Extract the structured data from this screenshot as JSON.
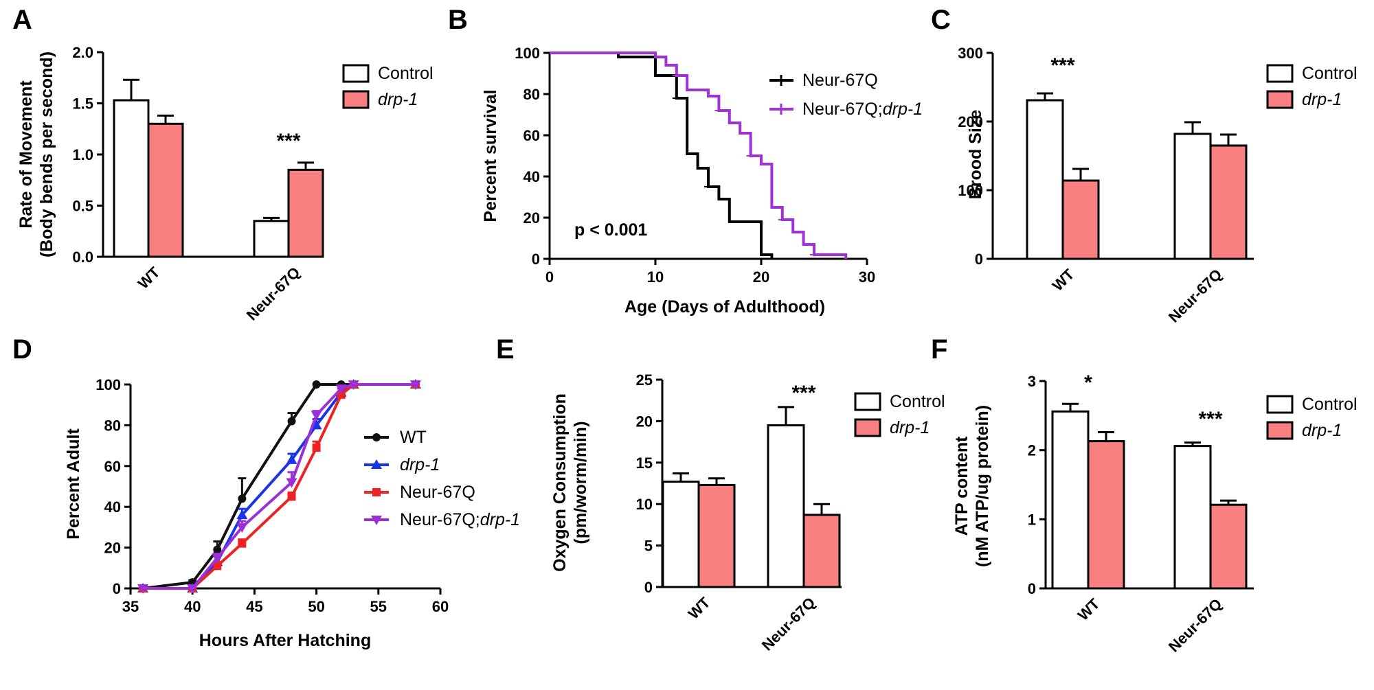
{
  "colors": {
    "control": "#ffffff",
    "drp1": "#f98080",
    "axis": "#000000",
    "wt": "#111111",
    "drp1_line": "#1a35e8",
    "neur": "#ee2222",
    "neurdrp": "#9b30d9",
    "surv_neur": "#000000",
    "surv_neurdrp": "#a030d8"
  },
  "chart_data": [
    {
      "panel": "A",
      "type": "bar",
      "categories": [
        "WT",
        "Neur-67Q"
      ],
      "series": [
        {
          "name": "Control",
          "values": [
            1.53,
            0.35
          ],
          "errors": [
            0.2,
            0.03
          ]
        },
        {
          "name": "drp-1",
          "values": [
            1.3,
            0.85
          ],
          "errors": [
            0.08,
            0.07
          ]
        }
      ],
      "ylabel": [
        "Rate of Movement",
        "(Body bends per second)"
      ],
      "ylim": [
        0,
        2.0
      ],
      "yticks": [
        "0.0",
        "0.5",
        "1.0",
        "1.5",
        "2.0"
      ],
      "significance": [
        {
          "label": "***",
          "category": 1
        }
      ],
      "legend": [
        "Control",
        "drp-1"
      ]
    },
    {
      "panel": "B",
      "type": "line",
      "xlabel": "Age (Days of Adulthood)",
      "ylabel": "Percent survival",
      "xlim": [
        0,
        30
      ],
      "ylim": [
        0,
        100
      ],
      "xticks": [
        "0",
        "10",
        "20",
        "30"
      ],
      "yticks": [
        "0",
        "20",
        "40",
        "60",
        "80",
        "100"
      ],
      "series": [
        {
          "name": "Neur-67Q",
          "x": [
            0,
            6.5,
            10,
            12,
            13,
            14,
            15,
            16,
            17,
            18,
            20,
            21
          ],
          "y": [
            100,
            98,
            89,
            78,
            51,
            44,
            35,
            29,
            18,
            18,
            2,
            0
          ]
        },
        {
          "name": "Neur-67Q;drp-1",
          "x": [
            0,
            10,
            11,
            12,
            13,
            15,
            16,
            17,
            18,
            19,
            20,
            21,
            22,
            23,
            24,
            25,
            28
          ],
          "y": [
            100,
            98,
            94,
            89,
            82,
            79,
            72,
            66,
            61,
            50,
            46,
            25,
            19,
            13,
            7,
            2,
            0
          ]
        }
      ],
      "annotation": "p < 0.001",
      "legend": [
        "Neur-67Q",
        "Neur-67Q;drp-1"
      ]
    },
    {
      "panel": "C",
      "type": "bar",
      "categories": [
        "WT",
        "Neur-67Q"
      ],
      "series": [
        {
          "name": "Control",
          "values": [
            231,
            182
          ],
          "errors": [
            10,
            17
          ]
        },
        {
          "name": "drp-1",
          "values": [
            114,
            165
          ],
          "errors": [
            17,
            16
          ]
        }
      ],
      "ylabel": [
        "Brood Size"
      ],
      "ylim": [
        0,
        300
      ],
      "yticks": [
        "0",
        "100",
        "200",
        "300"
      ],
      "significance": [
        {
          "label": "***",
          "category": 0
        }
      ],
      "legend": [
        "Control",
        "drp-1"
      ]
    },
    {
      "panel": "D",
      "type": "line",
      "xlabel": "Hours After Hatching",
      "ylabel": "Percent Adult",
      "xlim": [
        35,
        60
      ],
      "ylim": [
        0,
        100
      ],
      "xticks": [
        "35",
        "40",
        "45",
        "50",
        "55",
        "60"
      ],
      "yticks": [
        "0",
        "20",
        "40",
        "60",
        "80",
        "100"
      ],
      "x": [
        36,
        40,
        42,
        44,
        48,
        50,
        52,
        53,
        58
      ],
      "series": [
        {
          "name": "WT",
          "y": [
            0,
            3,
            19,
            44,
            82,
            100,
            100,
            100,
            100
          ],
          "errors": [
            0,
            1,
            4,
            10,
            4,
            0,
            0,
            0,
            0
          ]
        },
        {
          "name": "drp-1",
          "y": [
            0,
            0,
            13,
            36,
            63,
            80,
            96,
            100,
            100
          ],
          "errors": [
            0,
            0,
            3,
            3,
            3,
            3,
            0,
            0,
            0
          ]
        },
        {
          "name": "Neur-67Q",
          "y": [
            0,
            0,
            11,
            22,
            45,
            69,
            95,
            100,
            100
          ],
          "errors": [
            0,
            0,
            2,
            2,
            2,
            3,
            3,
            0,
            0
          ]
        },
        {
          "name": "Neur-67Q;drp-1",
          "y": [
            0,
            0,
            15,
            30,
            52,
            85,
            98,
            100,
            100
          ],
          "errors": [
            0,
            0,
            2,
            3,
            5,
            2,
            0,
            0,
            0
          ]
        }
      ],
      "legend": [
        "WT",
        "drp-1",
        "Neur-67Q",
        "Neur-67Q;drp-1"
      ]
    },
    {
      "panel": "E",
      "type": "bar",
      "categories": [
        "WT",
        "Neur-67Q"
      ],
      "series": [
        {
          "name": "Control",
          "values": [
            12.7,
            19.5
          ],
          "errors": [
            1.0,
            2.2
          ]
        },
        {
          "name": "drp-1",
          "values": [
            12.3,
            8.7
          ],
          "errors": [
            0.8,
            1.3
          ]
        }
      ],
      "ylabel": [
        "Oxygen Consumption",
        "(pm/worm/min)"
      ],
      "ylim": [
        0,
        25
      ],
      "yticks": [
        "0",
        "5",
        "10",
        "15",
        "20",
        "25"
      ],
      "significance": [
        {
          "label": "***",
          "category": 1
        }
      ],
      "legend": [
        "Control",
        "drp-1"
      ]
    },
    {
      "panel": "F",
      "type": "bar",
      "categories": [
        "WT",
        "Neur-67Q"
      ],
      "series": [
        {
          "name": "Control",
          "values": [
            2.56,
            2.06
          ],
          "errors": [
            0.11,
            0.05
          ]
        },
        {
          "name": "drp-1",
          "values": [
            2.13,
            1.21
          ],
          "errors": [
            0.13,
            0.06
          ]
        }
      ],
      "ylabel": [
        "ATP content",
        "(nM ATP/ug protein)"
      ],
      "ylim": [
        0,
        3
      ],
      "yticks": [
        "0",
        "1",
        "2",
        "3"
      ],
      "significance": [
        {
          "label": "*",
          "category": 0
        },
        {
          "label": "***",
          "category": 1
        }
      ],
      "legend": [
        "Control",
        "drp-1"
      ]
    }
  ]
}
